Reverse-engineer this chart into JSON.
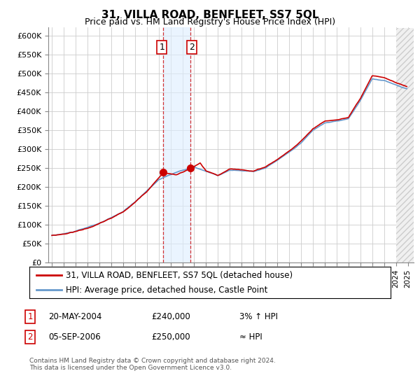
{
  "title": "31, VILLA ROAD, BENFLEET, SS7 5QL",
  "subtitle": "Price paid vs. HM Land Registry's House Price Index (HPI)",
  "ylabel_ticks": [
    "£0",
    "£50K",
    "£100K",
    "£150K",
    "£200K",
    "£250K",
    "£300K",
    "£350K",
    "£400K",
    "£450K",
    "£500K",
    "£550K",
    "£600K"
  ],
  "ylim": [
    0,
    620000
  ],
  "hpi_color": "#6699cc",
  "price_color": "#cc0000",
  "sale1_date": 2004.37,
  "sale1_price": 240000,
  "sale2_date": 2006.67,
  "sale2_price": 250000,
  "sale1_label": "1",
  "sale2_label": "2",
  "legend_line1": "31, VILLA ROAD, BENFLEET, SS7 5QL (detached house)",
  "legend_line2": "HPI: Average price, detached house, Castle Point",
  "table_row1": [
    "1",
    "20-MAY-2004",
    "£240,000",
    "3% ↑ HPI"
  ],
  "table_row2": [
    "2",
    "05-SEP-2006",
    "£250,000",
    "≈ HPI"
  ],
  "footer": "Contains HM Land Registry data © Crown copyright and database right 2024.\nThis data is licensed under the Open Government Licence v3.0.",
  "bg_color": "#ffffff",
  "grid_color": "#cccccc",
  "shade_color": "#ddeeff"
}
